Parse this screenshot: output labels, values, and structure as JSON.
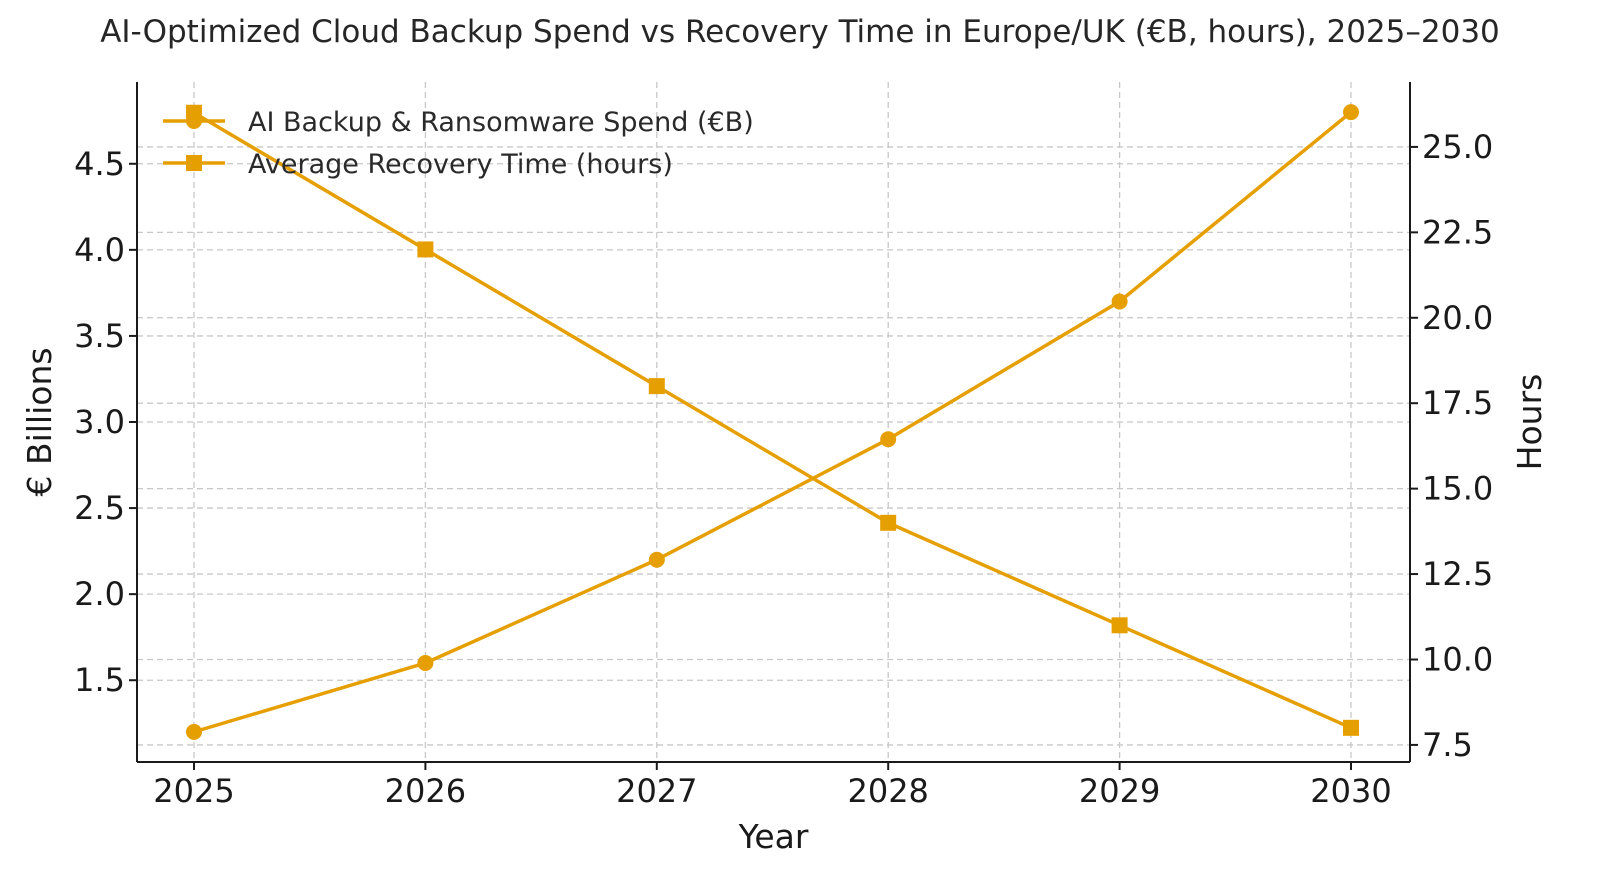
{
  "chart_data": {
    "type": "line",
    "title": "AI-Optimized Cloud Backup Spend vs Recovery Time in Europe/UK (€B, hours), 2025–2030",
    "xlabel": "Year",
    "ylabel_left": "€ Billions",
    "ylabel_right": "Hours",
    "x": [
      "2025",
      "2026",
      "2027",
      "2028",
      "2029",
      "2030"
    ],
    "y_left_ticks": [
      "1.5",
      "2.0",
      "2.5",
      "3.0",
      "3.5",
      "4.0",
      "4.5"
    ],
    "y_right_ticks": [
      "7.5",
      "10.0",
      "12.5",
      "15.0",
      "17.5",
      "20.0",
      "22.5",
      "25.0"
    ],
    "y_left_range": [
      1.025,
      4.975
    ],
    "y_right_range": [
      7.0,
      26.9
    ],
    "grid": true,
    "legend_position": "top-left",
    "series": [
      {
        "name": "AI Backup & Ransomware Spend (€B)",
        "axis": "left",
        "marker": "circle",
        "color": "#E69F00",
        "values": [
          1.2,
          1.6,
          2.2,
          2.9,
          3.7,
          4.8
        ]
      },
      {
        "name": "Average Recovery Time (hours)",
        "axis": "right",
        "marker": "square",
        "color": "#E69F00",
        "values": [
          26,
          22,
          18,
          14,
          11,
          8
        ]
      }
    ]
  }
}
